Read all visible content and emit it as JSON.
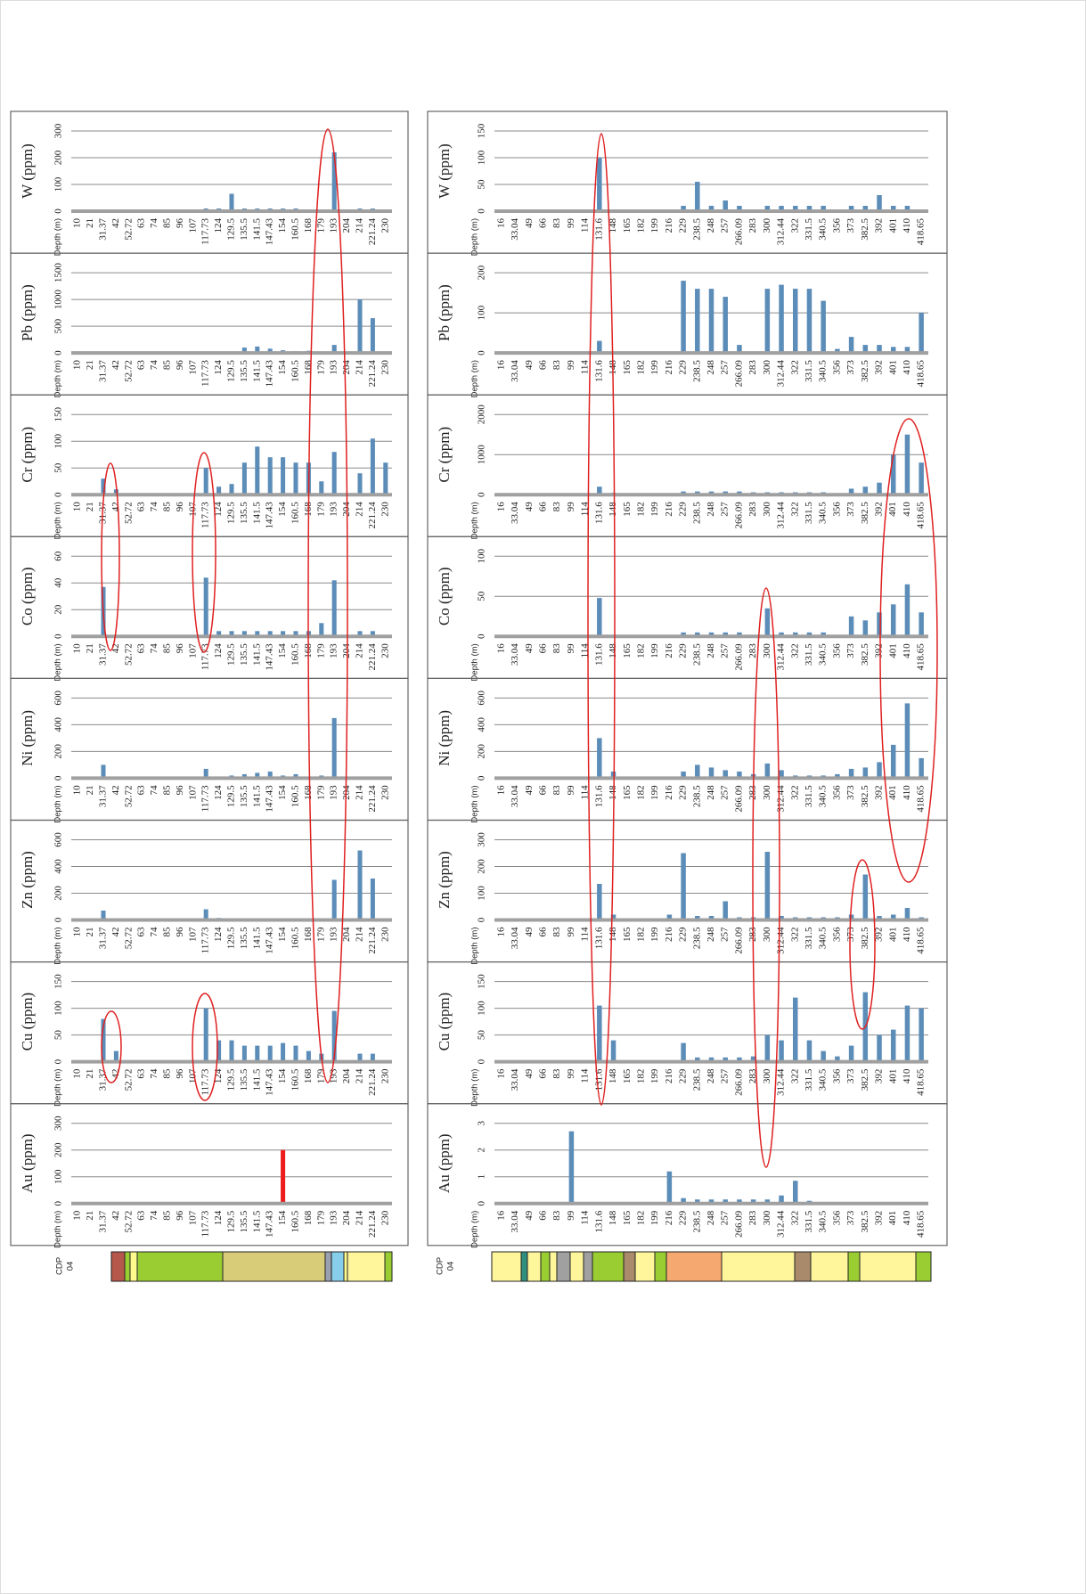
{
  "chart_data": [
    {
      "type": "bar",
      "ylabel": "W (ppm)",
      "xlabel": "Depth (m)",
      "color": "#5b8db8",
      "grid": true,
      "ylim": [
        0,
        300
      ],
      "yticks": [
        0,
        100,
        200,
        300
      ],
      "categories": [
        "10",
        "21",
        "31.37",
        "42",
        "52.72",
        "63",
        "74",
        "85",
        "96",
        "107",
        "117.73",
        "124",
        "129.5",
        "135.5",
        "141.5",
        "147.43",
        "154",
        "160.5",
        "168",
        "179",
        "193",
        "204",
        "214",
        "221.24",
        "230"
      ],
      "values": [
        0,
        0,
        0,
        0,
        0,
        0,
        0,
        0,
        0,
        0,
        10,
        10,
        65,
        10,
        10,
        10,
        10,
        10,
        0,
        0,
        220,
        0,
        10,
        10,
        0
      ]
    },
    {
      "type": "bar",
      "ylabel": "Pb (ppm)",
      "xlabel": "Depth (m)",
      "color": "#5b8db8",
      "grid": true,
      "ylim": [
        0,
        1500
      ],
      "yticks": [
        0,
        500,
        1000,
        1500
      ],
      "categories": [
        "10",
        "21",
        "31.37",
        "42",
        "52.72",
        "63",
        "74",
        "85",
        "96",
        "107",
        "117.73",
        "124",
        "129.5",
        "135.5",
        "141.5",
        "147.43",
        "154",
        "160.5",
        "168",
        "179",
        "193",
        "204",
        "214",
        "221.24",
        "230"
      ],
      "values": [
        0,
        0,
        0,
        0,
        0,
        0,
        0,
        0,
        0,
        0,
        0,
        0,
        20,
        100,
        120,
        80,
        50,
        30,
        40,
        0,
        150,
        0,
        1000,
        650,
        0
      ]
    },
    {
      "type": "bar",
      "ylabel": "Cr (ppm)",
      "xlabel": "Depth (m)",
      "color": "#5b8db8",
      "grid": true,
      "ylim": [
        0,
        150
      ],
      "yticks": [
        0,
        50,
        100,
        150
      ],
      "categories": [
        "10",
        "21",
        "31.37",
        "42",
        "52.72",
        "63",
        "74",
        "85",
        "96",
        "107",
        "117.73",
        "124",
        "129.5",
        "135.5",
        "141.5",
        "147.43",
        "154",
        "160.5",
        "168",
        "179",
        "193",
        "204",
        "214",
        "221.24",
        "230"
      ],
      "values": [
        0,
        0,
        30,
        10,
        2,
        2,
        2,
        2,
        2,
        2,
        50,
        15,
        20,
        60,
        90,
        70,
        70,
        60,
        60,
        25,
        80,
        0,
        40,
        105,
        60
      ]
    },
    {
      "type": "bar",
      "ylabel": "Co (ppm)",
      "xlabel": "Depth (m)",
      "color": "#5b8db8",
      "grid": true,
      "ylim": [
        0,
        60
      ],
      "yticks": [
        0,
        20,
        40,
        60
      ],
      "categories": [
        "10",
        "21",
        "31.37",
        "42",
        "52.72",
        "63",
        "74",
        "85",
        "96",
        "107",
        "117.73",
        "124",
        "129.5",
        "135.5",
        "141.5",
        "147.43",
        "154",
        "160.5",
        "168",
        "179",
        "193",
        "204",
        "214",
        "221.24",
        "230"
      ],
      "values": [
        0,
        0,
        37,
        0,
        0,
        0,
        0,
        0,
        0,
        0,
        44,
        4,
        4,
        4,
        4,
        4,
        4,
        4,
        4,
        10,
        42,
        0,
        4,
        4,
        0
      ]
    },
    {
      "type": "bar",
      "ylabel": "Ni (ppm)",
      "xlabel": "Depth (m)",
      "color": "#5b8db8",
      "grid": true,
      "ylim": [
        0,
        600
      ],
      "yticks": [
        0,
        200,
        400,
        600
      ],
      "categories": [
        "10",
        "21",
        "31.37",
        "42",
        "52.72",
        "63",
        "74",
        "85",
        "96",
        "107",
        "117.73",
        "124",
        "129.5",
        "135.5",
        "141.5",
        "147.43",
        "154",
        "160.5",
        "168",
        "179",
        "193",
        "204",
        "214",
        "221.24",
        "230"
      ],
      "values": [
        0,
        0,
        100,
        0,
        0,
        0,
        0,
        0,
        0,
        0,
        70,
        0,
        20,
        30,
        40,
        50,
        20,
        30,
        10,
        20,
        450,
        0,
        10,
        0,
        0
      ]
    },
    {
      "type": "bar",
      "ylabel": "Zn (ppm)",
      "xlabel": "Depth (m)",
      "color": "#5b8db8",
      "grid": true,
      "ylim": [
        0,
        600
      ],
      "yticks": [
        0,
        200,
        400,
        600
      ],
      "categories": [
        "10",
        "21",
        "31.37",
        "42",
        "52.72",
        "63",
        "74",
        "85",
        "96",
        "107",
        "117.73",
        "124",
        "129.5",
        "135.5",
        "141.5",
        "147.43",
        "154",
        "160.5",
        "168",
        "179",
        "193",
        "204",
        "214",
        "221.24",
        "230"
      ],
      "values": [
        0,
        0,
        70,
        0,
        0,
        0,
        0,
        0,
        0,
        0,
        80,
        15,
        0,
        0,
        0,
        0,
        0,
        0,
        0,
        0,
        300,
        0,
        520,
        310,
        0
      ]
    },
    {
      "type": "bar",
      "ylabel": "Cu (ppm)",
      "xlabel": "Depth (m)",
      "color": "#5b8db8",
      "grid": true,
      "ylim": [
        0,
        150
      ],
      "yticks": [
        0,
        50,
        100,
        150
      ],
      "categories": [
        "10",
        "21",
        "31.37",
        "42",
        "52.72",
        "63",
        "74",
        "85",
        "96",
        "107",
        "117.73",
        "124",
        "129.5",
        "135.5",
        "141.5",
        "147.43",
        "154",
        "160.5",
        "168",
        "179",
        "193",
        "204",
        "214",
        "221.24",
        "230"
      ],
      "values": [
        0,
        0,
        80,
        20,
        0,
        0,
        0,
        0,
        0,
        0,
        100,
        40,
        40,
        30,
        30,
        30,
        35,
        30,
        20,
        15,
        95,
        0,
        15,
        15,
        0
      ]
    },
    {
      "type": "bar",
      "ylabel": "Au (ppm)",
      "xlabel": "Depth (m)",
      "color": "#ee1c1c",
      "grid": true,
      "ylim": [
        0,
        300
      ],
      "yticks": [
        0,
        100,
        200,
        300
      ],
      "categories": [
        "10",
        "21",
        "31.37",
        "42",
        "52.72",
        "63",
        "74",
        "85",
        "96",
        "107",
        "117.73",
        "124",
        "129.5",
        "135.5",
        "141.5",
        "147.43",
        "154",
        "160.5",
        "168",
        "179",
        "193",
        "204",
        "214",
        "221.24",
        "230"
      ],
      "values": [
        0,
        0,
        0,
        0,
        0,
        0,
        0,
        0,
        0,
        0,
        0,
        0,
        0,
        0,
        0,
        0,
        200,
        0,
        0,
        0,
        0,
        0,
        0,
        0,
        0
      ]
    },
    {
      "type": "bar",
      "ylabel": "W (ppm)",
      "xlabel": "Depth (m)",
      "color": "#5b8db8",
      "grid": true,
      "ylim": [
        0,
        150
      ],
      "yticks": [
        0,
        50,
        100,
        150
      ],
      "categories": [
        "16",
        "33.04",
        "49",
        "66",
        "83",
        "99",
        "114",
        "131.6",
        "148",
        "165",
        "182",
        "199",
        "216",
        "229",
        "238.5",
        "248",
        "257",
        "266.09",
        "283",
        "300",
        "312.44",
        "322",
        "331.5",
        "340.5",
        "356",
        "373",
        "382.5",
        "392",
        "401",
        "410",
        "418.65"
      ],
      "values": [
        0,
        0,
        0,
        0,
        0,
        0,
        0,
        100,
        0,
        0,
        0,
        0,
        0,
        10,
        55,
        10,
        20,
        10,
        0,
        10,
        10,
        10,
        10,
        10,
        0,
        10,
        10,
        30,
        10,
        10,
        0
      ]
    },
    {
      "type": "bar",
      "ylabel": "Pb (ppm)",
      "xlabel": "Depth (m)",
      "color": "#5b8db8",
      "grid": true,
      "ylim": [
        0,
        200
      ],
      "yticks": [
        0,
        100,
        200
      ],
      "categories": [
        "16",
        "33.04",
        "49",
        "66",
        "83",
        "99",
        "114",
        "131.6",
        "148",
        "165",
        "182",
        "199",
        "216",
        "229",
        "238.5",
        "248",
        "257",
        "266.09",
        "283",
        "300",
        "312.44",
        "322",
        "331.5",
        "340.5",
        "356",
        "373",
        "382.5",
        "392",
        "401",
        "410",
        "418.65"
      ],
      "values": [
        0,
        0,
        0,
        0,
        0,
        0,
        0,
        30,
        0,
        0,
        0,
        0,
        0,
        180,
        160,
        160,
        140,
        20,
        0,
        160,
        170,
        160,
        160,
        130,
        10,
        40,
        20,
        20,
        15,
        15,
        100
      ]
    },
    {
      "type": "bar",
      "ylabel": "Cr (ppm)",
      "xlabel": "Depth (m)",
      "color": "#5b8db8",
      "grid": true,
      "ylim": [
        0,
        2000
      ],
      "yticks": [
        0,
        1000,
        2000
      ],
      "categories": [
        "16",
        "33.04",
        "49",
        "66",
        "83",
        "99",
        "114",
        "131.6",
        "148",
        "165",
        "182",
        "199",
        "216",
        "229",
        "238.5",
        "248",
        "257",
        "266.09",
        "283",
        "300",
        "312.44",
        "322",
        "331.5",
        "340.5",
        "356",
        "373",
        "382.5",
        "392",
        "401",
        "410",
        "418.65"
      ],
      "values": [
        0,
        0,
        0,
        0,
        0,
        0,
        0,
        200,
        50,
        30,
        30,
        30,
        0,
        80,
        80,
        80,
        80,
        80,
        60,
        60,
        60,
        60,
        60,
        60,
        30,
        150,
        200,
        300,
        1000,
        1500,
        800
      ]
    },
    {
      "type": "bar",
      "ylabel": "Co (ppm)",
      "xlabel": "Depth (m)",
      "color": "#5b8db8",
      "grid": true,
      "ylim": [
        0,
        100
      ],
      "yticks": [
        0,
        50,
        100
      ],
      "categories": [
        "16",
        "33.04",
        "49",
        "66",
        "83",
        "99",
        "114",
        "131.6",
        "148",
        "165",
        "182",
        "199",
        "216",
        "229",
        "238.5",
        "248",
        "257",
        "266.09",
        "283",
        "300",
        "312.44",
        "322",
        "331.5",
        "340.5",
        "356",
        "373",
        "382.5",
        "392",
        "401",
        "410",
        "418.65"
      ],
      "values": [
        0,
        0,
        0,
        0,
        0,
        0,
        0,
        48,
        0,
        0,
        0,
        0,
        0,
        5,
        5,
        5,
        5,
        5,
        0,
        35,
        5,
        5,
        5,
        5,
        0,
        25,
        20,
        30,
        40,
        65,
        30
      ]
    },
    {
      "type": "bar",
      "ylabel": "Ni (ppm)",
      "xlabel": "Depth (m)",
      "color": "#5b8db8",
      "grid": true,
      "ylim": [
        0,
        600
      ],
      "yticks": [
        0,
        200,
        400,
        600
      ],
      "categories": [
        "16",
        "33.04",
        "49",
        "66",
        "83",
        "99",
        "114",
        "131.6",
        "148",
        "165",
        "182",
        "199",
        "216",
        "229",
        "238.5",
        "248",
        "257",
        "266.09",
        "283",
        "300",
        "312.44",
        "322",
        "331.5",
        "340.5",
        "356",
        "373",
        "382.5",
        "392",
        "401",
        "410",
        "418.65"
      ],
      "values": [
        0,
        0,
        0,
        0,
        0,
        0,
        0,
        300,
        50,
        0,
        0,
        0,
        0,
        50,
        100,
        80,
        60,
        50,
        30,
        110,
        60,
        20,
        20,
        20,
        30,
        70,
        80,
        120,
        250,
        560,
        150
      ]
    },
    {
      "type": "bar",
      "ylabel": "Zn (ppm)",
      "xlabel": "Depth (m)",
      "color": "#5b8db8",
      "grid": true,
      "ylim": [
        0,
        300
      ],
      "yticks": [
        0,
        100,
        200,
        300
      ],
      "categories": [
        "16",
        "33.04",
        "49",
        "66",
        "83",
        "99",
        "114",
        "131.6",
        "148",
        "165",
        "182",
        "199",
        "216",
        "229",
        "238.5",
        "248",
        "257",
        "266.09",
        "283",
        "300",
        "312.44",
        "322",
        "331.5",
        "340.5",
        "356",
        "373",
        "382.5",
        "392",
        "401",
        "410",
        "418.65"
      ],
      "values": [
        0,
        0,
        0,
        0,
        0,
        0,
        0,
        135,
        20,
        0,
        0,
        0,
        20,
        250,
        15,
        15,
        70,
        10,
        10,
        255,
        15,
        10,
        10,
        10,
        10,
        20,
        170,
        15,
        20,
        45,
        10
      ]
    },
    {
      "type": "bar",
      "ylabel": "Cu (ppm)",
      "xlabel": "Depth (m)",
      "color": "#5b8db8",
      "grid": true,
      "ylim": [
        0,
        150
      ],
      "yticks": [
        0,
        50,
        100,
        150
      ],
      "categories": [
        "16",
        "33.04",
        "49",
        "66",
        "83",
        "99",
        "114",
        "131.6",
        "148",
        "165",
        "182",
        "199",
        "216",
        "229",
        "238.5",
        "248",
        "257",
        "266.09",
        "283",
        "300",
        "312.44",
        "322",
        "331.5",
        "340.5",
        "356",
        "373",
        "382.5",
        "392",
        "401",
        "410",
        "418.65"
      ],
      "values": [
        0,
        0,
        0,
        0,
        0,
        0,
        0,
        105,
        40,
        0,
        0,
        0,
        0,
        35,
        8,
        8,
        8,
        8,
        10,
        50,
        40,
        120,
        40,
        20,
        10,
        30,
        130,
        50,
        60,
        105,
        100
      ]
    },
    {
      "type": "bar",
      "ylabel": "Au (ppm)",
      "xlabel": "Depth (m)",
      "color": "#5b8db8",
      "grid": true,
      "ylim": [
        0,
        3
      ],
      "yticks": [
        0,
        1,
        2,
        3
      ],
      "categories": [
        "16",
        "33.04",
        "49",
        "66",
        "83",
        "99",
        "114",
        "131.6",
        "148",
        "165",
        "182",
        "199",
        "216",
        "229",
        "238.5",
        "248",
        "257",
        "266.09",
        "283",
        "300",
        "312.44",
        "322",
        "331.5",
        "340.5",
        "356",
        "373",
        "382.5",
        "392",
        "401",
        "410",
        "418.65"
      ],
      "values": [
        0,
        0,
        0,
        0,
        0,
        2.7,
        0,
        0,
        0,
        0,
        0,
        0,
        1.2,
        0.2,
        0.15,
        0.15,
        0.15,
        0.15,
        0.15,
        0.15,
        0.3,
        0.85,
        0.1,
        0.05,
        0.05,
        0.05,
        0.05,
        0.05,
        0.05,
        0.05,
        0.05
      ]
    }
  ],
  "lithology": {
    "labels": [
      [
        "CDP",
        "04"
      ],
      [
        "CDP",
        "04"
      ]
    ]
  }
}
